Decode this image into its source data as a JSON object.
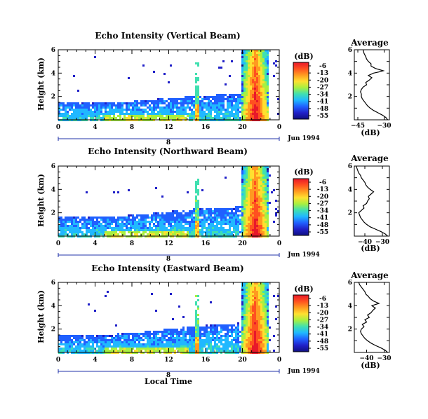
{
  "figure": {
    "xlabel": "Local Time",
    "date_label": "Jun 1994",
    "day_label": "8"
  },
  "colorbar": {
    "unit": "(dB)",
    "ticks": [
      "-6",
      "-13",
      "-20",
      "-27",
      "-34",
      "-41",
      "-48",
      "-55"
    ],
    "stops": [
      "#e8182a",
      "#ff5020",
      "#ff9a20",
      "#ffe030",
      "#a8f040",
      "#40e0b0",
      "#20b8ff",
      "#2060ff",
      "#2020c8",
      "#101080"
    ]
  },
  "chart_data": [
    {
      "type": "heatmap",
      "title": "Echo Intensity (Vertical Beam)",
      "ylabel": "Height (km)",
      "xlim": [
        0,
        24
      ],
      "ylim": [
        0,
        6
      ],
      "xticks": [
        "0",
        "4",
        "8",
        "12",
        "16",
        "20",
        "0"
      ],
      "yticks": [
        "2",
        "4",
        "6"
      ],
      "color_range_db": [
        -55,
        -6
      ],
      "features": [
        {
          "kind": "boundary_layer",
          "time_start": 0,
          "time_end": 15,
          "top_km": [
            1.6,
            1.5,
            1.6,
            1.8,
            2.0,
            2.2,
            2.3
          ]
        },
        {
          "kind": "narrow_plume",
          "time": 15.0,
          "top_km": 5.0
        },
        {
          "kind": "intense_core",
          "time_start": 19.8,
          "time_end": 22.8,
          "top_km": 6.0,
          "max_db": -6
        }
      ]
    },
    {
      "type": "heatmap",
      "title": "Echo Intensity (Northward Beam)",
      "ylabel": "Height (km)",
      "xlim": [
        0,
        24
      ],
      "ylim": [
        0,
        6
      ],
      "xticks": [
        "0",
        "4",
        "8",
        "12",
        "16",
        "20",
        "0"
      ],
      "yticks": [
        "2",
        "4",
        "6"
      ],
      "color_range_db": [
        -55,
        -6
      ],
      "features": [
        {
          "kind": "boundary_layer",
          "time_start": 0,
          "time_end": 15,
          "top_km": [
            1.8,
            1.7,
            1.8,
            2.0,
            2.3,
            2.5,
            2.6
          ]
        },
        {
          "kind": "narrow_plume",
          "time": 15.0,
          "top_km": 5.0
        },
        {
          "kind": "intense_core",
          "time_start": 19.8,
          "time_end": 22.8,
          "top_km": 6.0,
          "max_db": -6
        }
      ]
    },
    {
      "type": "heatmap",
      "title": "Echo Intensity (Eastward Beam)",
      "ylabel": "Height (km)",
      "xlim": [
        0,
        24
      ],
      "ylim": [
        0,
        6
      ],
      "xticks": [
        "0",
        "4",
        "8",
        "12",
        "16",
        "20",
        "0"
      ],
      "yticks": [
        "2",
        "4",
        "6"
      ],
      "color_range_db": [
        -55,
        -6
      ],
      "features": [
        {
          "kind": "boundary_layer",
          "time_start": 0,
          "time_end": 15,
          "top_km": [
            1.6,
            1.5,
            1.7,
            1.9,
            2.2,
            2.4,
            2.6
          ]
        },
        {
          "kind": "narrow_plume",
          "time": 15.0,
          "top_km": 5.0
        },
        {
          "kind": "intense_core",
          "time_start": 19.8,
          "time_end": 22.8,
          "top_km": 6.0,
          "max_db": -6
        }
      ]
    },
    {
      "type": "line",
      "title": "Average",
      "xlabel": "(dB)",
      "xticks": [
        "-45",
        "-30"
      ],
      "yticks": [
        "2",
        "4",
        "6"
      ],
      "xlim": [
        -47,
        -27
      ],
      "ylim": [
        0,
        6
      ],
      "x": [
        -28.0,
        -29.0,
        -31.0,
        -33.5,
        -36.0,
        -38.0,
        -39.5,
        -40.5,
        -41.5,
        -42.5,
        -43.0,
        -43.0,
        -43.5,
        -43.0,
        -42.0,
        -40.0,
        -40.5,
        -38.5,
        -37.0,
        -39.0,
        -36.0,
        -33.0,
        -30.5,
        -35.0,
        -37.5,
        -37.5,
        -39.0,
        -40.0,
        -40.5,
        -41.5,
        -42.0
      ],
      "y": [
        0.0,
        0.2,
        0.4,
        0.6,
        0.8,
        1.0,
        1.2,
        1.4,
        1.6,
        1.8,
        2.0,
        2.2,
        2.4,
        2.6,
        2.8,
        3.0,
        3.2,
        3.4,
        3.6,
        3.8,
        4.0,
        4.1,
        4.2,
        4.4,
        4.6,
        4.8,
        5.0,
        5.2,
        5.4,
        5.7,
        6.0
      ]
    },
    {
      "type": "line",
      "title": "Average",
      "xlabel": "(dB)",
      "xticks": [
        "-40",
        "-30"
      ],
      "yticks": [
        "2",
        "4",
        "6"
      ],
      "xlim": [
        -46,
        -26
      ],
      "ylim": [
        0,
        6
      ],
      "x": [
        -27.0,
        -28.5,
        -31.0,
        -34.0,
        -37.0,
        -39.0,
        -40.5,
        -41.5,
        -42.5,
        -43.0,
        -43.5,
        -42.0,
        -40.5,
        -41.0,
        -39.0,
        -38.5,
        -37.5,
        -38.0,
        -36.5,
        -35.0,
        -37.0,
        -38.5,
        -39.5,
        -40.0,
        -41.0,
        -42.0,
        -42.5,
        -43.5,
        -44.0,
        -44.5,
        -45.0
      ],
      "y": [
        0.0,
        0.2,
        0.4,
        0.6,
        0.8,
        1.0,
        1.2,
        1.4,
        1.6,
        1.8,
        2.0,
        2.2,
        2.4,
        2.6,
        2.8,
        3.0,
        3.2,
        3.4,
        3.6,
        3.8,
        4.0,
        4.2,
        4.4,
        4.6,
        4.8,
        5.0,
        5.2,
        5.4,
        5.6,
        5.8,
        6.0
      ]
    },
    {
      "type": "line",
      "title": "Average",
      "xlabel": "(dB)",
      "xticks": [
        "-40",
        "-30"
      ],
      "yticks": [
        "2",
        "4",
        "6"
      ],
      "xlim": [
        -47,
        -27
      ],
      "ylim": [
        0,
        6
      ],
      "x": [
        -28.0,
        -29.5,
        -32.0,
        -35.0,
        -37.5,
        -39.5,
        -41.0,
        -42.0,
        -43.0,
        -43.5,
        -43.0,
        -41.5,
        -42.5,
        -40.0,
        -41.0,
        -38.5,
        -39.5,
        -37.5,
        -36.5,
        -35.0,
        -37.0,
        -33.0,
        -36.0,
        -38.0,
        -39.0,
        -40.5,
        -41.0,
        -42.0,
        -43.0,
        -44.0,
        -44.5
      ],
      "y": [
        0.0,
        0.2,
        0.4,
        0.6,
        0.8,
        1.0,
        1.2,
        1.4,
        1.6,
        1.8,
        2.0,
        2.2,
        2.4,
        2.6,
        2.8,
        3.0,
        3.2,
        3.4,
        3.6,
        3.8,
        4.0,
        4.2,
        4.4,
        4.6,
        4.8,
        5.0,
        5.2,
        5.4,
        5.6,
        5.8,
        6.0
      ]
    }
  ]
}
